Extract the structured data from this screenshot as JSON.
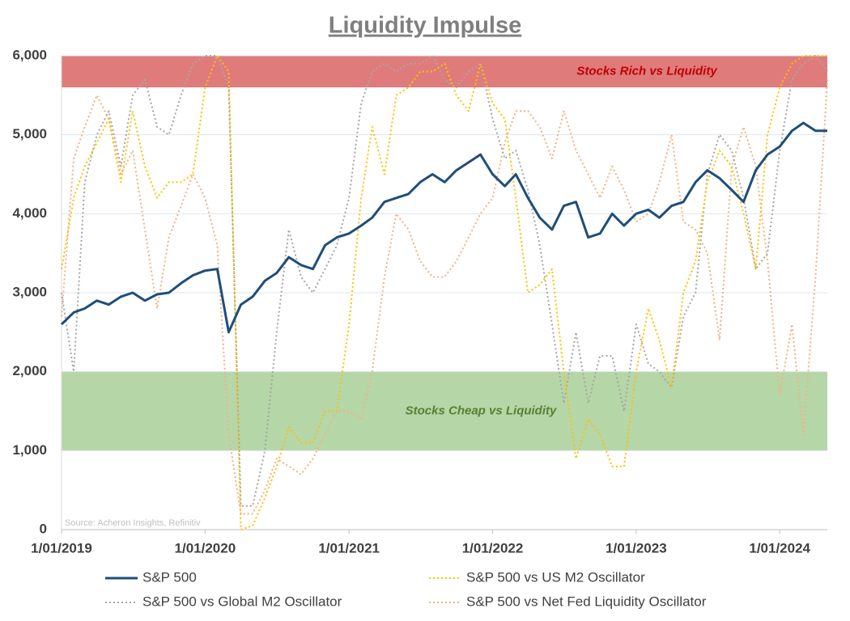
{
  "chart_data": {
    "type": "line",
    "title": "Liquidity Impulse",
    "source": "Source: Acheron Insights, Refinitiv",
    "x": [
      "2019-01-01",
      "2019-02-01",
      "2019-03-01",
      "2019-04-01",
      "2019-05-01",
      "2019-06-01",
      "2019-07-01",
      "2019-08-01",
      "2019-09-01",
      "2019-10-01",
      "2019-11-01",
      "2019-12-01",
      "2020-01-01",
      "2020-02-01",
      "2020-03-01",
      "2020-04-01",
      "2020-05-01",
      "2020-06-01",
      "2020-07-01",
      "2020-08-01",
      "2020-09-01",
      "2020-10-01",
      "2020-11-01",
      "2020-12-01",
      "2021-01-01",
      "2021-02-01",
      "2021-03-01",
      "2021-04-01",
      "2021-05-01",
      "2021-06-01",
      "2021-07-01",
      "2021-08-01",
      "2021-09-01",
      "2021-10-01",
      "2021-11-01",
      "2021-12-01",
      "2022-01-01",
      "2022-02-01",
      "2022-03-01",
      "2022-04-01",
      "2022-05-01",
      "2022-06-01",
      "2022-07-01",
      "2022-08-01",
      "2022-09-01",
      "2022-10-01",
      "2022-11-01",
      "2022-12-01",
      "2023-01-01",
      "2023-02-01",
      "2023-03-01",
      "2023-04-01",
      "2023-05-01",
      "2023-06-01",
      "2023-07-01",
      "2023-08-01",
      "2023-09-01",
      "2023-10-01",
      "2023-11-01",
      "2023-12-01",
      "2024-01-01",
      "2024-02-01",
      "2024-03-01",
      "2024-04-01",
      "2024-05-01"
    ],
    "series": [
      {
        "name": "S&P 500",
        "color": "#1f4e79",
        "dash": "solid",
        "values": [
          2600,
          2750,
          2800,
          2900,
          2850,
          2950,
          3000,
          2900,
          2980,
          3000,
          3120,
          3220,
          3280,
          3300,
          2500,
          2850,
          2950,
          3150,
          3250,
          3450,
          3350,
          3300,
          3600,
          3700,
          3750,
          3850,
          3950,
          4150,
          4200,
          4250,
          4400,
          4500,
          4400,
          4550,
          4650,
          4750,
          4500,
          4350,
          4500,
          4200,
          3950,
          3800,
          4100,
          4150,
          3700,
          3750,
          4000,
          3850,
          4000,
          4050,
          3950,
          4100,
          4150,
          4400,
          4550,
          4450,
          4300,
          4150,
          4550,
          4750,
          4850,
          5050,
          5150,
          5050,
          5050
        ]
      },
      {
        "name": "S&P 500 vs US M2 Oscillator",
        "color": "#ffc000",
        "dash": "dotted",
        "values": [
          3300,
          4200,
          4600,
          4900,
          5200,
          4400,
          5300,
          4600,
          4200,
          4400,
          4400,
          4500,
          5600,
          6000,
          5800,
          0,
          50,
          400,
          800,
          1300,
          1100,
          1100,
          1500,
          1500,
          2600,
          4200,
          5100,
          4500,
          5500,
          5600,
          5800,
          5800,
          5900,
          5500,
          5300,
          5900,
          5400,
          5200,
          4200,
          3000,
          3100,
          3300,
          2000,
          900,
          1400,
          1200,
          800,
          800,
          2000,
          2800,
          2400,
          1800,
          3000,
          3400,
          4400,
          4800,
          4600,
          4000,
          3300,
          5000,
          5600,
          5900,
          6000,
          6000,
          6000
        ]
      },
      {
        "name": "S&P 500 vs Global M2 Oscillator",
        "color": "#a6a6a6",
        "dash": "dotted",
        "values": [
          3000,
          2000,
          4400,
          5000,
          5300,
          4600,
          5500,
          5700,
          5100,
          5000,
          5500,
          5900,
          6000,
          6000,
          5600,
          300,
          300,
          1000,
          2500,
          3800,
          3200,
          3000,
          3300,
          3600,
          4200,
          5400,
          5800,
          5900,
          5800,
          5900,
          5900,
          6000,
          5700,
          5600,
          5800,
          5900,
          5200,
          4700,
          4800,
          4300,
          3600,
          2600,
          1600,
          2500,
          1600,
          2200,
          2200,
          1500,
          2600,
          2100,
          2000,
          1800,
          2700,
          3000,
          4500,
          5000,
          4800,
          4200,
          3300,
          3500,
          4800,
          5700,
          5900,
          6000,
          5800
        ]
      },
      {
        "name": "S&P 500 vs Net Fed Liquidity Oscillator",
        "color": "#f4b183",
        "dash": "dotted",
        "values": [
          2700,
          4700,
          5100,
          5500,
          5200,
          4500,
          4800,
          3800,
          2800,
          3700,
          4100,
          4500,
          4200,
          3600,
          1200,
          200,
          200,
          500,
          900,
          800,
          700,
          900,
          1200,
          1500,
          1500,
          1400,
          2000,
          3200,
          4000,
          3800,
          3400,
          3200,
          3200,
          3400,
          3700,
          4000,
          4200,
          4900,
          5300,
          5300,
          5100,
          4700,
          5300,
          4800,
          4500,
          4200,
          4600,
          4300,
          3900,
          4000,
          4400,
          5000,
          3900,
          3800,
          3500,
          2400,
          4600,
          5100,
          4600,
          3400,
          1700,
          2600,
          1200,
          3200,
          5700
        ]
      }
    ],
    "bands": [
      {
        "from": 5600,
        "to": 6000,
        "label": "Stocks Rich vs Liquidity",
        "color": "#e07b7b",
        "label_color": "#c00000"
      },
      {
        "from": 1000,
        "to": 2000,
        "label": "Stocks Cheap vs Liquidity",
        "color": "#b5d6a7",
        "label_color": "#548235"
      }
    ],
    "xlim": [
      "2019-01-01",
      "2024-05-01"
    ],
    "xticks": [
      {
        "value": "2019-01-01",
        "label": "1/01/2019"
      },
      {
        "value": "2020-01-01",
        "label": "1/01/2020"
      },
      {
        "value": "2021-01-01",
        "label": "1/01/2021"
      },
      {
        "value": "2022-01-01",
        "label": "1/01/2022"
      },
      {
        "value": "2023-01-01",
        "label": "1/01/2023"
      },
      {
        "value": "2024-01-01",
        "label": "1/01/2024"
      }
    ],
    "ylim": [
      0,
      6000
    ],
    "yticks": [
      0,
      {
        "value": 1000,
        "label": "1,000"
      },
      {
        "value": 2000,
        "label": "2,000"
      },
      {
        "value": 3000,
        "label": "3,000"
      },
      {
        "value": 4000,
        "label": "4,000"
      },
      {
        "value": 5000,
        "label": "5,000"
      },
      {
        "value": 6000,
        "label": "6,000"
      }
    ],
    "grid": true,
    "legend": "bottom"
  }
}
